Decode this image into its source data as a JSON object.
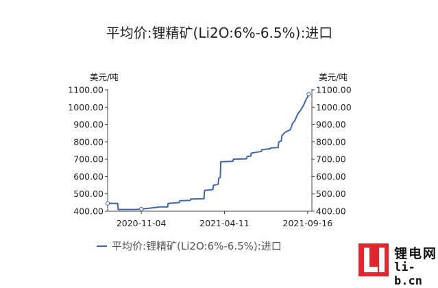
{
  "chart_data": {
    "type": "line",
    "title": "平均价:锂精矿(Li2O:6%-6.5%):进口",
    "left_unit": "美元/吨",
    "right_unit": "美元/吨",
    "ylim": [
      400,
      1100
    ],
    "yticks": [
      "1100.00",
      "1000.00",
      "900.00",
      "800.00",
      "700.00",
      "600.00",
      "500.00",
      "400.00"
    ],
    "ytick_values": [
      1100,
      1000,
      900,
      800,
      700,
      600,
      500,
      400
    ],
    "xlim": [
      "2020-09-01",
      "2021-09-24"
    ],
    "xticks": [
      "2020-11-04",
      "2021-04-11",
      "2021-09-16"
    ],
    "grid": false,
    "legend": "bottom-center",
    "series": [
      {
        "name": "平均价:锂精矿(Li2O:6%-6.5%):进口",
        "color": "#3d64b1",
        "points": [
          [
            "2020-09-01",
            445
          ],
          [
            "2020-09-20",
            445
          ],
          [
            "2020-09-21",
            410
          ],
          [
            "2020-10-25",
            410
          ],
          [
            "2020-11-04",
            412
          ],
          [
            "2020-11-12",
            415
          ],
          [
            "2020-11-28",
            420
          ],
          [
            "2020-12-10",
            425
          ],
          [
            "2020-12-24",
            425
          ],
          [
            "2020-12-25",
            445
          ],
          [
            "2021-01-15",
            450
          ],
          [
            "2021-01-16",
            460
          ],
          [
            "2021-02-05",
            462
          ],
          [
            "2021-02-06",
            470
          ],
          [
            "2021-03-03",
            472
          ],
          [
            "2021-03-04",
            520
          ],
          [
            "2021-03-20",
            525
          ],
          [
            "2021-03-21",
            550
          ],
          [
            "2021-03-30",
            555
          ],
          [
            "2021-03-31",
            590
          ],
          [
            "2021-04-03",
            595
          ],
          [
            "2021-04-04",
            685
          ],
          [
            "2021-04-27",
            688
          ],
          [
            "2021-04-28",
            700
          ],
          [
            "2021-05-23",
            702
          ],
          [
            "2021-05-24",
            715
          ],
          [
            "2021-05-31",
            718
          ],
          [
            "2021-06-01",
            735
          ],
          [
            "2021-06-20",
            745
          ],
          [
            "2021-06-21",
            755
          ],
          [
            "2021-07-07",
            760
          ],
          [
            "2021-07-08",
            765
          ],
          [
            "2021-07-22",
            767
          ],
          [
            "2021-07-23",
            800
          ],
          [
            "2021-07-28",
            805
          ],
          [
            "2021-07-29",
            835
          ],
          [
            "2021-08-04",
            855
          ],
          [
            "2021-08-14",
            870
          ],
          [
            "2021-08-18",
            905
          ],
          [
            "2021-08-23",
            925
          ],
          [
            "2021-08-28",
            960
          ],
          [
            "2021-09-03",
            985
          ],
          [
            "2021-09-08",
            1010
          ],
          [
            "2021-09-13",
            1045
          ],
          [
            "2021-09-16",
            1060
          ],
          [
            "2021-09-18",
            1075
          ]
        ]
      }
    ]
  },
  "watermark": {
    "name_cn": "锂电网",
    "domain": "li-b.cn",
    "brand_color": "#e3262d"
  }
}
